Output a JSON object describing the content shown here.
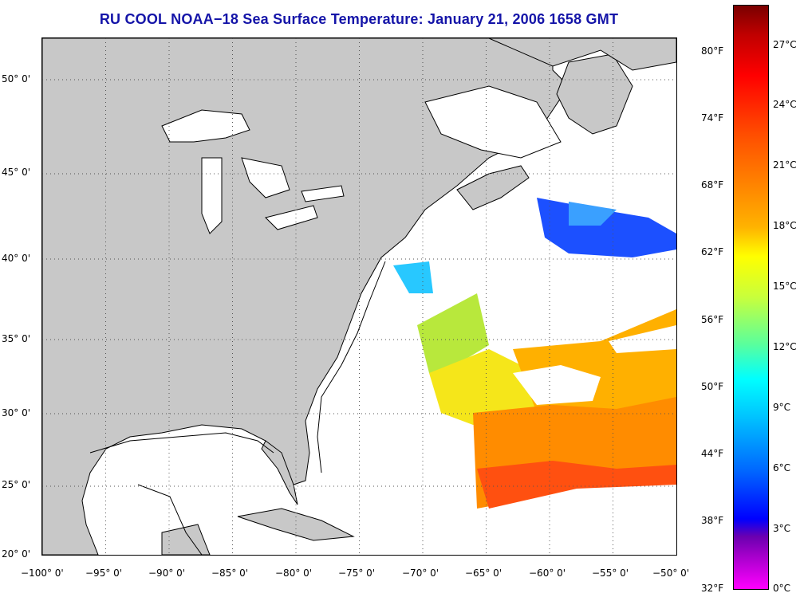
{
  "title": "RU COOL  NOAA−18  Sea Surface Temperature:  January 21, 2006 1658 GMT",
  "longitude_labels": [
    "−100° 0'",
    "−95° 0'",
    "−90° 0'",
    "−85° 0'",
    "−80° 0'",
    "−75° 0'",
    "−70° 0'",
    "−65° 0'",
    "−60° 0'",
    "−55° 0'",
    "−50° 0'"
  ],
  "latitude_labels": [
    "50° 0'",
    "45° 0'",
    "40° 0'",
    "35° 0'",
    "30° 0'",
    "25° 0'",
    "20° 0'"
  ],
  "fahrenheit_labels": [
    "80°F",
    "74°F",
    "68°F",
    "62°F",
    "56°F",
    "50°F",
    "44°F",
    "38°F",
    "32°F"
  ],
  "celsius_labels": [
    "27°C",
    "24°C",
    "21°C",
    "18°C",
    "15°C",
    "12°C",
    "9°C",
    "6°C",
    "3°C",
    "0°C"
  ],
  "colors": {
    "title": "#1414a8",
    "land": "#c8c8c8",
    "ocean": "#ffffff",
    "grid": "#555555"
  }
}
